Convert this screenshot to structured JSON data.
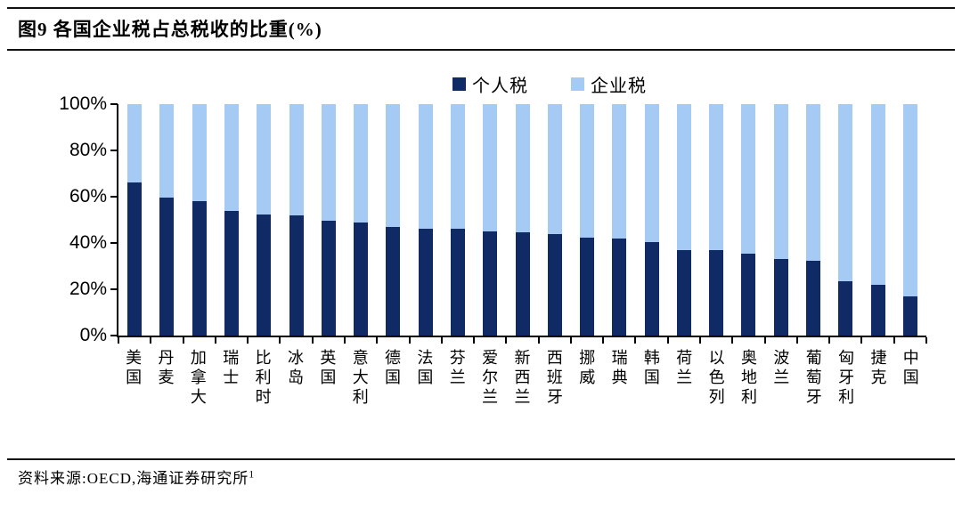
{
  "header": {
    "title": "图9  各国企业税占总税收的比重(%)"
  },
  "legend": {
    "items": [
      {
        "label": "个人税",
        "color": "#0f2a64"
      },
      {
        "label": "企业税",
        "color": "#a5cbf4"
      }
    ]
  },
  "chart_data": {
    "type": "bar",
    "stacked": true,
    "stacked_to": 100,
    "title": "各国企业税占总税收的比重(%)",
    "xlabel": "",
    "ylabel": "",
    "ylim": [
      0,
      100
    ],
    "yticks": [
      "0%",
      "20%",
      "40%",
      "60%",
      "80%",
      "100%"
    ],
    "grid": false,
    "legend_position": "top",
    "categories": [
      "美国",
      "丹麦",
      "加拿大",
      "瑞士",
      "比利时",
      "冰岛",
      "英国",
      "意大利",
      "德国",
      "法国",
      "芬兰",
      "爱尔兰",
      "新西兰",
      "西班牙",
      "挪威",
      "瑞典",
      "韩国",
      "荷兰",
      "以色列",
      "奥地利",
      "波兰",
      "葡萄牙",
      "匈牙利",
      "捷克",
      "中国"
    ],
    "series": [
      {
        "name": "个人税",
        "color": "#0f2a64",
        "values": [
          66,
          59.5,
          58,
          54,
          52.5,
          52,
          49.5,
          49,
          47,
          46,
          46,
          45,
          44.5,
          44,
          42.5,
          42,
          40.5,
          37,
          37,
          35.5,
          33,
          32.5,
          23.5,
          22,
          17
        ]
      },
      {
        "name": "企业税",
        "color": "#a5cbf4",
        "values": [
          34,
          40.5,
          42,
          46,
          47.5,
          48,
          50.5,
          51,
          53,
          54,
          54,
          55,
          55.5,
          56,
          57.5,
          58,
          59.5,
          63,
          63,
          64.5,
          67,
          67.5,
          76.5,
          78,
          83
        ]
      }
    ]
  },
  "footer": {
    "source_label": "资料来源:",
    "source_text": "OECD,海通证券研究所",
    "footnote_mark": "1"
  }
}
